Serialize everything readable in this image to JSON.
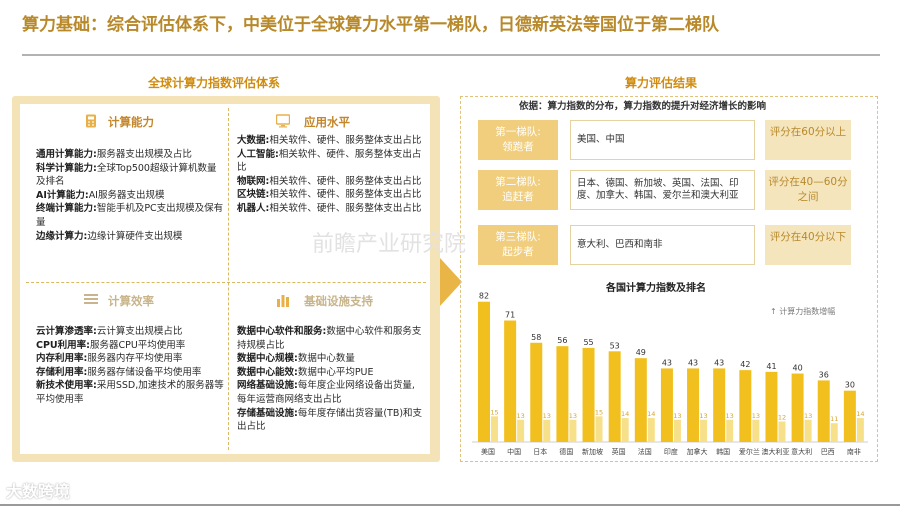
{
  "title": "算力基础：综合评估体系下，中美位于全球算力水平第一梯队，日德新英法等国位于第二梯队",
  "left_section": {
    "heading": "全球计算力指数评估体系",
    "quadrants": {
      "compute_capability": {
        "title": "计算能力",
        "lines": [
          {
            "k": "通用计算能力:",
            "v": "服务器支出规模及占比"
          },
          {
            "k": "科学计算能力:",
            "v": "全球Top500超级计算机数量及排名"
          },
          {
            "k": "AI计算能力:",
            "v": "AI服务器支出规模"
          },
          {
            "k": "终端计算能力:",
            "v": "智能手机及PC支出规模及保有量"
          },
          {
            "k": "边缘计算力:",
            "v": "边缘计算硬件支出规模"
          }
        ]
      },
      "application_level": {
        "title": "应用水平",
        "lines": [
          {
            "k": "大数据:",
            "v": "相关软件、硬件、服务整体支出占比"
          },
          {
            "k": "人工智能:",
            "v": "相关软件、硬件、服务整体支出占比"
          },
          {
            "k": "物联网:",
            "v": "相关软件、硬件、服务整体支出占比"
          },
          {
            "k": "区块链:",
            "v": "相关软件、硬件、服务整体支出占比"
          },
          {
            "k": "机器人:",
            "v": "相关软件、硬件、服务整体支出占比"
          }
        ]
      },
      "compute_efficiency": {
        "title": "计算效率",
        "lines": [
          {
            "k": "云计算渗透率:",
            "v": "云计算支出规模占比"
          },
          {
            "k": "CPU利用率:",
            "v": "服务器CPU平均使用率"
          },
          {
            "k": "内存利用率:",
            "v": "服务器内存平均使用率"
          },
          {
            "k": "存储利用率:",
            "v": "服务器存储设备平均使用率"
          },
          {
            "k": "新技术使用率:",
            "v": "采用SSD,加速技术的服务器等平均使用率"
          }
        ]
      },
      "infrastructure": {
        "title": "基础设施支持",
        "lines": [
          {
            "k": "数据中心软件和服务:",
            "v": "数据中心软件和服务支持规模占比"
          },
          {
            "k": "数据中心规模:",
            "v": "数据中心数量"
          },
          {
            "k": "数据中心能效:",
            "v": "数据中心平均PUE"
          },
          {
            "k": "网络基础设施:",
            "v": "每年度企业网络设备出货量, 每年运营商网络支出占比"
          },
          {
            "k": "存储基础设施:",
            "v": "每年度存储出货容量(TB)和支出占比"
          }
        ]
      }
    }
  },
  "right_section": {
    "heading": "算力评估结果",
    "basis": "依据：算力指数的分布，算力指数的提升对经济增长的影响",
    "tiers": [
      {
        "name": "第一梯队:",
        "sub": "领跑者",
        "countries": "美国、中国",
        "range": "评分在60分以上"
      },
      {
        "name": "第二梯队:",
        "sub": "追赶者",
        "countries": "日本、德国、新加坡、英国、法国、印度、加拿大、韩国、爱尔兰和澳大利亚",
        "range": "评分在40—60分之间"
      },
      {
        "name": "第三梯队:",
        "sub": "起步者",
        "countries": "意大利、巴西和南非",
        "range": "评分在40分以下"
      }
    ]
  },
  "chart_data": {
    "type": "bar",
    "title": "各国计算力指数及排名",
    "legend": "计算力指数增幅",
    "categories": [
      "美国",
      "中国",
      "日本",
      "德国",
      "新加坡",
      "英国",
      "法国",
      "印度",
      "加拿大",
      "韩国",
      "爱尔兰",
      "澳大利亚",
      "意大利",
      "巴西",
      "南非"
    ],
    "series": [
      {
        "values": [
          82,
          71,
          58,
          56,
          55,
          53,
          49,
          43,
          43,
          43,
          42,
          41,
          40,
          36,
          30
        ]
      },
      {
        "name": "计算力指数增幅",
        "values": [
          15,
          13,
          13,
          13,
          15,
          14,
          14,
          13,
          13,
          13,
          13,
          12,
          13,
          11,
          14
        ]
      }
    ],
    "ylim": [
      0,
      90
    ],
    "colors": {
      "main": "#f2c01e",
      "increase": "#f7e08a"
    }
  },
  "watermark": "前瞻产业研究院",
  "logo": "大数跨境",
  "colors": {
    "title": "#b8892a",
    "accent": "#f2c01e",
    "tier_label": "#f0ce7e"
  },
  "icons": [
    "calculator-icon",
    "monitor-icon",
    "efficiency-icon",
    "infrastructure-icon"
  ]
}
